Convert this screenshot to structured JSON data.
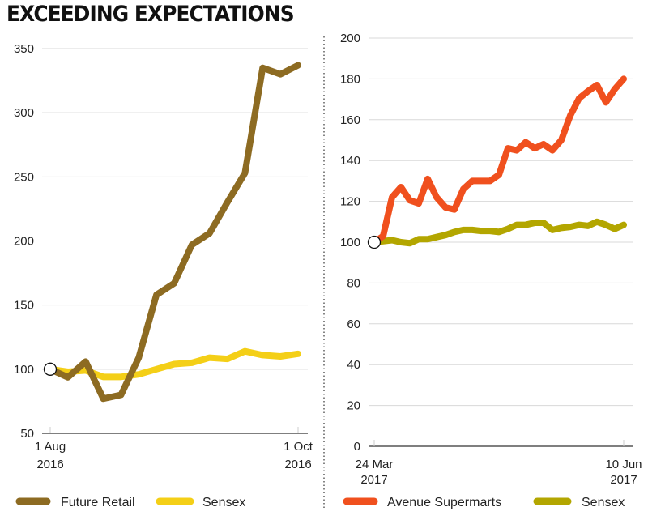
{
  "title": "EXCEEDING EXPECTATIONS",
  "chart_data": [
    {
      "type": "line",
      "title": "",
      "x_tick_labels": [
        [
          "1 Aug",
          "2016"
        ],
        [
          "1 Oct",
          "2016"
        ]
      ],
      "ylim": [
        50,
        350
      ],
      "yticks": [
        50,
        100,
        150,
        200,
        250,
        300,
        350
      ],
      "grid": true,
      "legend": "bottom",
      "base_marker_value": 100,
      "series": [
        {
          "name": "Future Retail",
          "color": "#8d6b22",
          "values": [
            100,
            93.7,
            106,
            77,
            80,
            109,
            158,
            167,
            197,
            206,
            230,
            253,
            335,
            330,
            337
          ]
        },
        {
          "name": "Sensex",
          "color": "#f4cf17",
          "values": [
            100,
            98,
            99,
            94,
            94,
            96,
            100,
            104,
            105,
            109,
            108,
            114,
            111,
            110,
            112
          ]
        }
      ]
    },
    {
      "type": "line",
      "title": "",
      "x_tick_labels": [
        [
          "24 Mar",
          "2017"
        ],
        [
          "10 Jun",
          "2017"
        ]
      ],
      "ylim": [
        0,
        200
      ],
      "yticks": [
        0,
        20,
        40,
        60,
        80,
        100,
        120,
        140,
        160,
        180,
        200
      ],
      "grid": true,
      "legend": "bottom",
      "base_marker_value": 100,
      "series": [
        {
          "name": "Avenue Supermarts",
          "color": "#f0501e",
          "values": [
            100,
            103,
            122,
            127,
            120.5,
            119,
            131,
            122,
            117,
            116,
            126,
            130,
            130,
            130,
            133,
            146,
            145,
            149,
            146,
            148,
            145,
            150,
            162,
            170.5,
            174,
            177,
            168.5,
            175,
            180
          ]
        },
        {
          "name": "Sensex",
          "color": "#b3a600",
          "values": [
            100,
            100.5,
            101,
            100,
            99.5,
            101.5,
            101.5,
            102.5,
            103.5,
            105,
            106,
            106,
            105.5,
            105.5,
            105,
            106.5,
            108.5,
            108.5,
            109.5,
            109.5,
            106,
            107,
            107.5,
            108.5,
            108,
            110,
            108.5,
            106.5,
            108.5
          ]
        }
      ]
    }
  ]
}
